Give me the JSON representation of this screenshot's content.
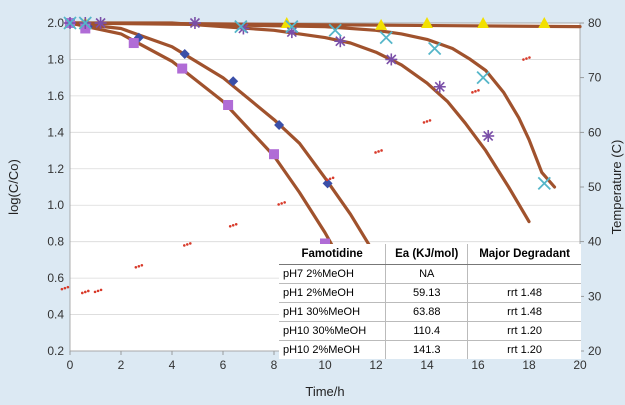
{
  "chart_data": {
    "type": "scatter",
    "xlabel": "Time/h",
    "ylabel": "log(C/Co)",
    "y2label": "Temperature (C)",
    "xlim": [
      0,
      20
    ],
    "ylim": [
      0.2,
      2.0
    ],
    "y2lim": [
      20,
      80
    ],
    "xticks": [
      "0",
      "2",
      "4",
      "6",
      "8",
      "10",
      "12",
      "14",
      "16",
      "18",
      "20"
    ],
    "yticks": [
      "0.2",
      "0.4",
      "0.6",
      "0.8",
      "1.0",
      "1.2",
      "1.4",
      "1.6",
      "1.8",
      "2.0"
    ],
    "y2ticks": [
      "20",
      "30",
      "40",
      "50",
      "60",
      "70",
      "80"
    ],
    "grid": true,
    "colors": {
      "fit_curve": "#a0522d",
      "pH7": "#f2e000",
      "pH1_2": "#3a4fa8",
      "pH1_30": "#b06cd6",
      "pH10_30": "#7a4fa8",
      "pH10_2": "#55b6c9",
      "temperature": "#d83a2a",
      "gridline": "#d9d9d9"
    },
    "series": [
      {
        "marker": "triangle",
        "color_key": "pH7",
        "x": [
          0,
          0.6,
          8.5,
          12.2,
          14,
          16.2,
          18.6
        ],
        "y": [
          2.0,
          2.0,
          2.0,
          1.99,
          2.0,
          2.0,
          2.0
        ]
      },
      {
        "marker": "diamond",
        "color_key": "pH1_2",
        "x": [
          0,
          0.7,
          2.7,
          4.5,
          6.4,
          8.2,
          10.1
        ],
        "y": [
          2.0,
          1.98,
          1.92,
          1.83,
          1.68,
          1.44,
          1.12
        ]
      },
      {
        "marker": "square",
        "color_key": "pH1_30",
        "x": [
          0,
          0.6,
          2.5,
          4.4,
          6.2,
          8.0,
          10.0
        ],
        "y": [
          2.0,
          1.97,
          1.89,
          1.75,
          1.55,
          1.28,
          0.79
        ]
      },
      {
        "marker": "star",
        "color_key": "pH10_30",
        "x": [
          0,
          0.6,
          1.2,
          4.9,
          6.8,
          8.7,
          10.6,
          12.6,
          14.5,
          16.4
        ],
        "y": [
          2.0,
          2.0,
          2.0,
          2.0,
          1.97,
          1.95,
          1.9,
          1.8,
          1.65,
          1.38
        ]
      },
      {
        "marker": "x",
        "color_key": "pH10_2",
        "x": [
          0,
          0.6,
          6.7,
          8.7,
          10.4,
          12.4,
          14.3,
          16.2,
          18.6
        ],
        "y": [
          2.0,
          2.0,
          1.98,
          1.98,
          1.96,
          1.92,
          1.86,
          1.7,
          1.12
        ]
      },
      {
        "marker": "dot",
        "axis": "right",
        "color_key": "temperature",
        "x": [
          -0.2,
          0.6,
          1.1,
          2.7,
          4.6,
          6.4,
          8.3,
          10.2,
          12.1,
          14.0,
          15.9,
          17.9
        ],
        "y": [
          31.5,
          30.8,
          31,
          35.5,
          39.5,
          43,
          47,
          51.5,
          56.5,
          62,
          67.5,
          73.5
        ]
      }
    ],
    "fits": [
      {
        "x": [
          0,
          2,
          4,
          6,
          8,
          9,
          10,
          11,
          12
        ],
        "y": [
          2.0,
          1.97,
          1.87,
          1.7,
          1.47,
          1.34,
          1.15,
          0.95,
          0.72
        ]
      },
      {
        "x": [
          0,
          2,
          4,
          6,
          8,
          9,
          10,
          10.6
        ],
        "y": [
          2.0,
          1.94,
          1.79,
          1.57,
          1.27,
          1.07,
          0.85,
          0.7
        ]
      },
      {
        "x": [
          0,
          4,
          6,
          8,
          10,
          11,
          12,
          13,
          14,
          14.8,
          15.5,
          16.3,
          17.2,
          18.0
        ],
        "y": [
          2.0,
          2.0,
          1.98,
          1.96,
          1.92,
          1.89,
          1.84,
          1.77,
          1.67,
          1.57,
          1.45,
          1.3,
          1.1,
          0.91
        ]
      },
      {
        "x": [
          0,
          6,
          10,
          12,
          13,
          14,
          15,
          15.7,
          16.3,
          17,
          17.6,
          18.0,
          18.5,
          19
        ],
        "y": [
          2.0,
          1.99,
          1.98,
          1.96,
          1.94,
          1.91,
          1.86,
          1.8,
          1.74,
          1.62,
          1.48,
          1.36,
          1.18,
          1.1
        ]
      },
      {
        "x": [
          0,
          5,
          10,
          15,
          20
        ],
        "y": [
          2.0,
          1.996,
          1.99,
          1.985,
          1.98
        ]
      }
    ],
    "table": {
      "headers": [
        "Famotidine",
        "Ea (KJ/mol)",
        "Major Degradant"
      ],
      "rows": [
        [
          "pH7 2%MeOH",
          "NA",
          ""
        ],
        [
          "pH1 2%MeOH",
          "59.13",
          "rrt 1.48"
        ],
        [
          "pH1 30%MeOH",
          "63.88",
          "rrt 1.48"
        ],
        [
          "pH10 30%MeOH",
          "110.4",
          "rrt 1.20"
        ],
        [
          "pH10 2%MeOH",
          "141.3",
          "rrt 1.20"
        ]
      ]
    }
  }
}
